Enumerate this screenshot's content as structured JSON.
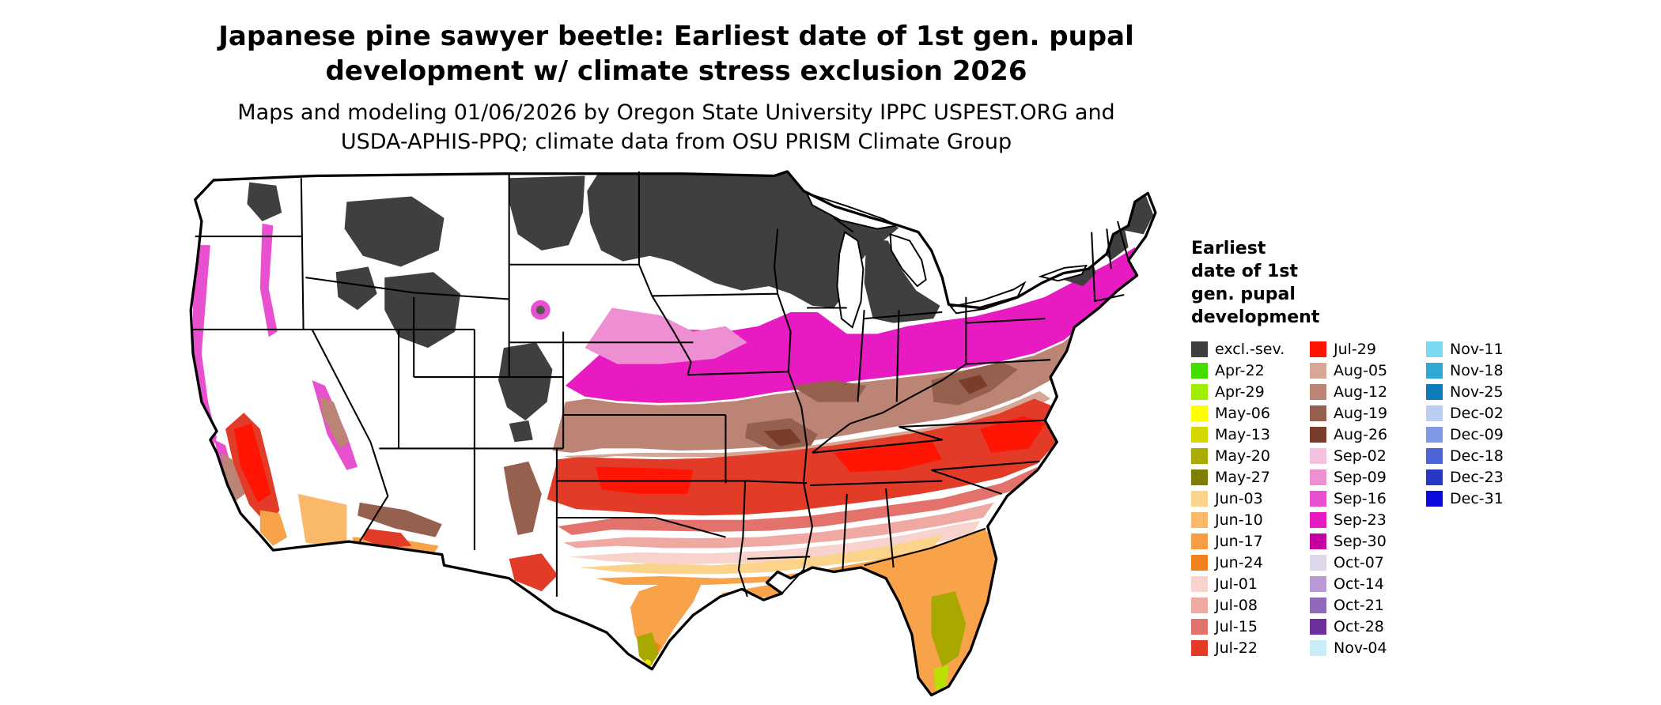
{
  "title": {
    "line1": "Japanese pine sawyer beetle: Earliest date of 1st gen. pupal",
    "line2": "development w/ climate stress exclusion 2026"
  },
  "subtitle": {
    "line1": "Maps and modeling 01/06/2026 by Oregon State University IPPC USPEST.ORG and",
    "line2": "USDA-APHIS-PPQ; climate data from OSU PRISM Climate Group"
  },
  "map": {
    "region": "Continental United States",
    "background_color": "#ffffff",
    "border_color": "#000000"
  },
  "legend": {
    "title_lines": [
      "Earliest",
      "date of 1st",
      "gen. pupal",
      "development"
    ],
    "columns": [
      {
        "entries": [
          {
            "label": "excl.-sev.",
            "color": "#3f3f3f"
          },
          {
            "label": "Apr-22",
            "color": "#44dd00"
          },
          {
            "label": "Apr-29",
            "color": "#a0ee00"
          },
          {
            "label": "May-06",
            "color": "#ffff00"
          },
          {
            "label": "May-13",
            "color": "#d6d600"
          },
          {
            "label": "May-20",
            "color": "#aaaa00"
          },
          {
            "label": "May-27",
            "color": "#7e7e00"
          },
          {
            "label": "Jun-03",
            "color": "#fbd38b"
          },
          {
            "label": "Jun-10",
            "color": "#f9b968"
          },
          {
            "label": "Jun-17",
            "color": "#f79d44"
          },
          {
            "label": "Jun-24",
            "color": "#f08020"
          },
          {
            "label": "Jul-01",
            "color": "#f8d2cc"
          },
          {
            "label": "Jul-08",
            "color": "#f0a8a2"
          },
          {
            "label": "Jul-15",
            "color": "#e4726c"
          },
          {
            "label": "Jul-22",
            "color": "#e23b28"
          }
        ]
      },
      {
        "entries": [
          {
            "label": "Jul-29",
            "color": "#ff1504"
          },
          {
            "label": "Aug-05",
            "color": "#d8a695"
          },
          {
            "label": "Aug-12",
            "color": "#bb8474"
          },
          {
            "label": "Aug-19",
            "color": "#96604e"
          },
          {
            "label": "Aug-26",
            "color": "#7a3d2c"
          },
          {
            "label": "Sep-02",
            "color": "#f4c2e0"
          },
          {
            "label": "Sep-09",
            "color": "#ef8fd3"
          },
          {
            "label": "Sep-16",
            "color": "#e950cf"
          },
          {
            "label": "Sep-23",
            "color": "#e81bc3"
          },
          {
            "label": "Sep-30",
            "color": "#c400a0"
          },
          {
            "label": "Oct-07",
            "color": "#ded7ea"
          },
          {
            "label": "Oct-14",
            "color": "#b99ad4"
          },
          {
            "label": "Oct-21",
            "color": "#9268bb"
          },
          {
            "label": "Oct-28",
            "color": "#6b309b"
          },
          {
            "label": "Nov-04",
            "color": "#c9eefa"
          }
        ]
      },
      {
        "entries": [
          {
            "label": "Nov-11",
            "color": "#7cd8ee"
          },
          {
            "label": "Nov-18",
            "color": "#2fa8d5"
          },
          {
            "label": "Nov-25",
            "color": "#0d7cba"
          },
          {
            "label": "Dec-02",
            "color": "#bccdf2"
          },
          {
            "label": "Dec-09",
            "color": "#8099e6"
          },
          {
            "label": "Dec-18",
            "color": "#4d63d6"
          },
          {
            "label": "Dec-23",
            "color": "#2638c4"
          },
          {
            "label": "Dec-31",
            "color": "#0b0bdf"
          }
        ]
      }
    ]
  }
}
